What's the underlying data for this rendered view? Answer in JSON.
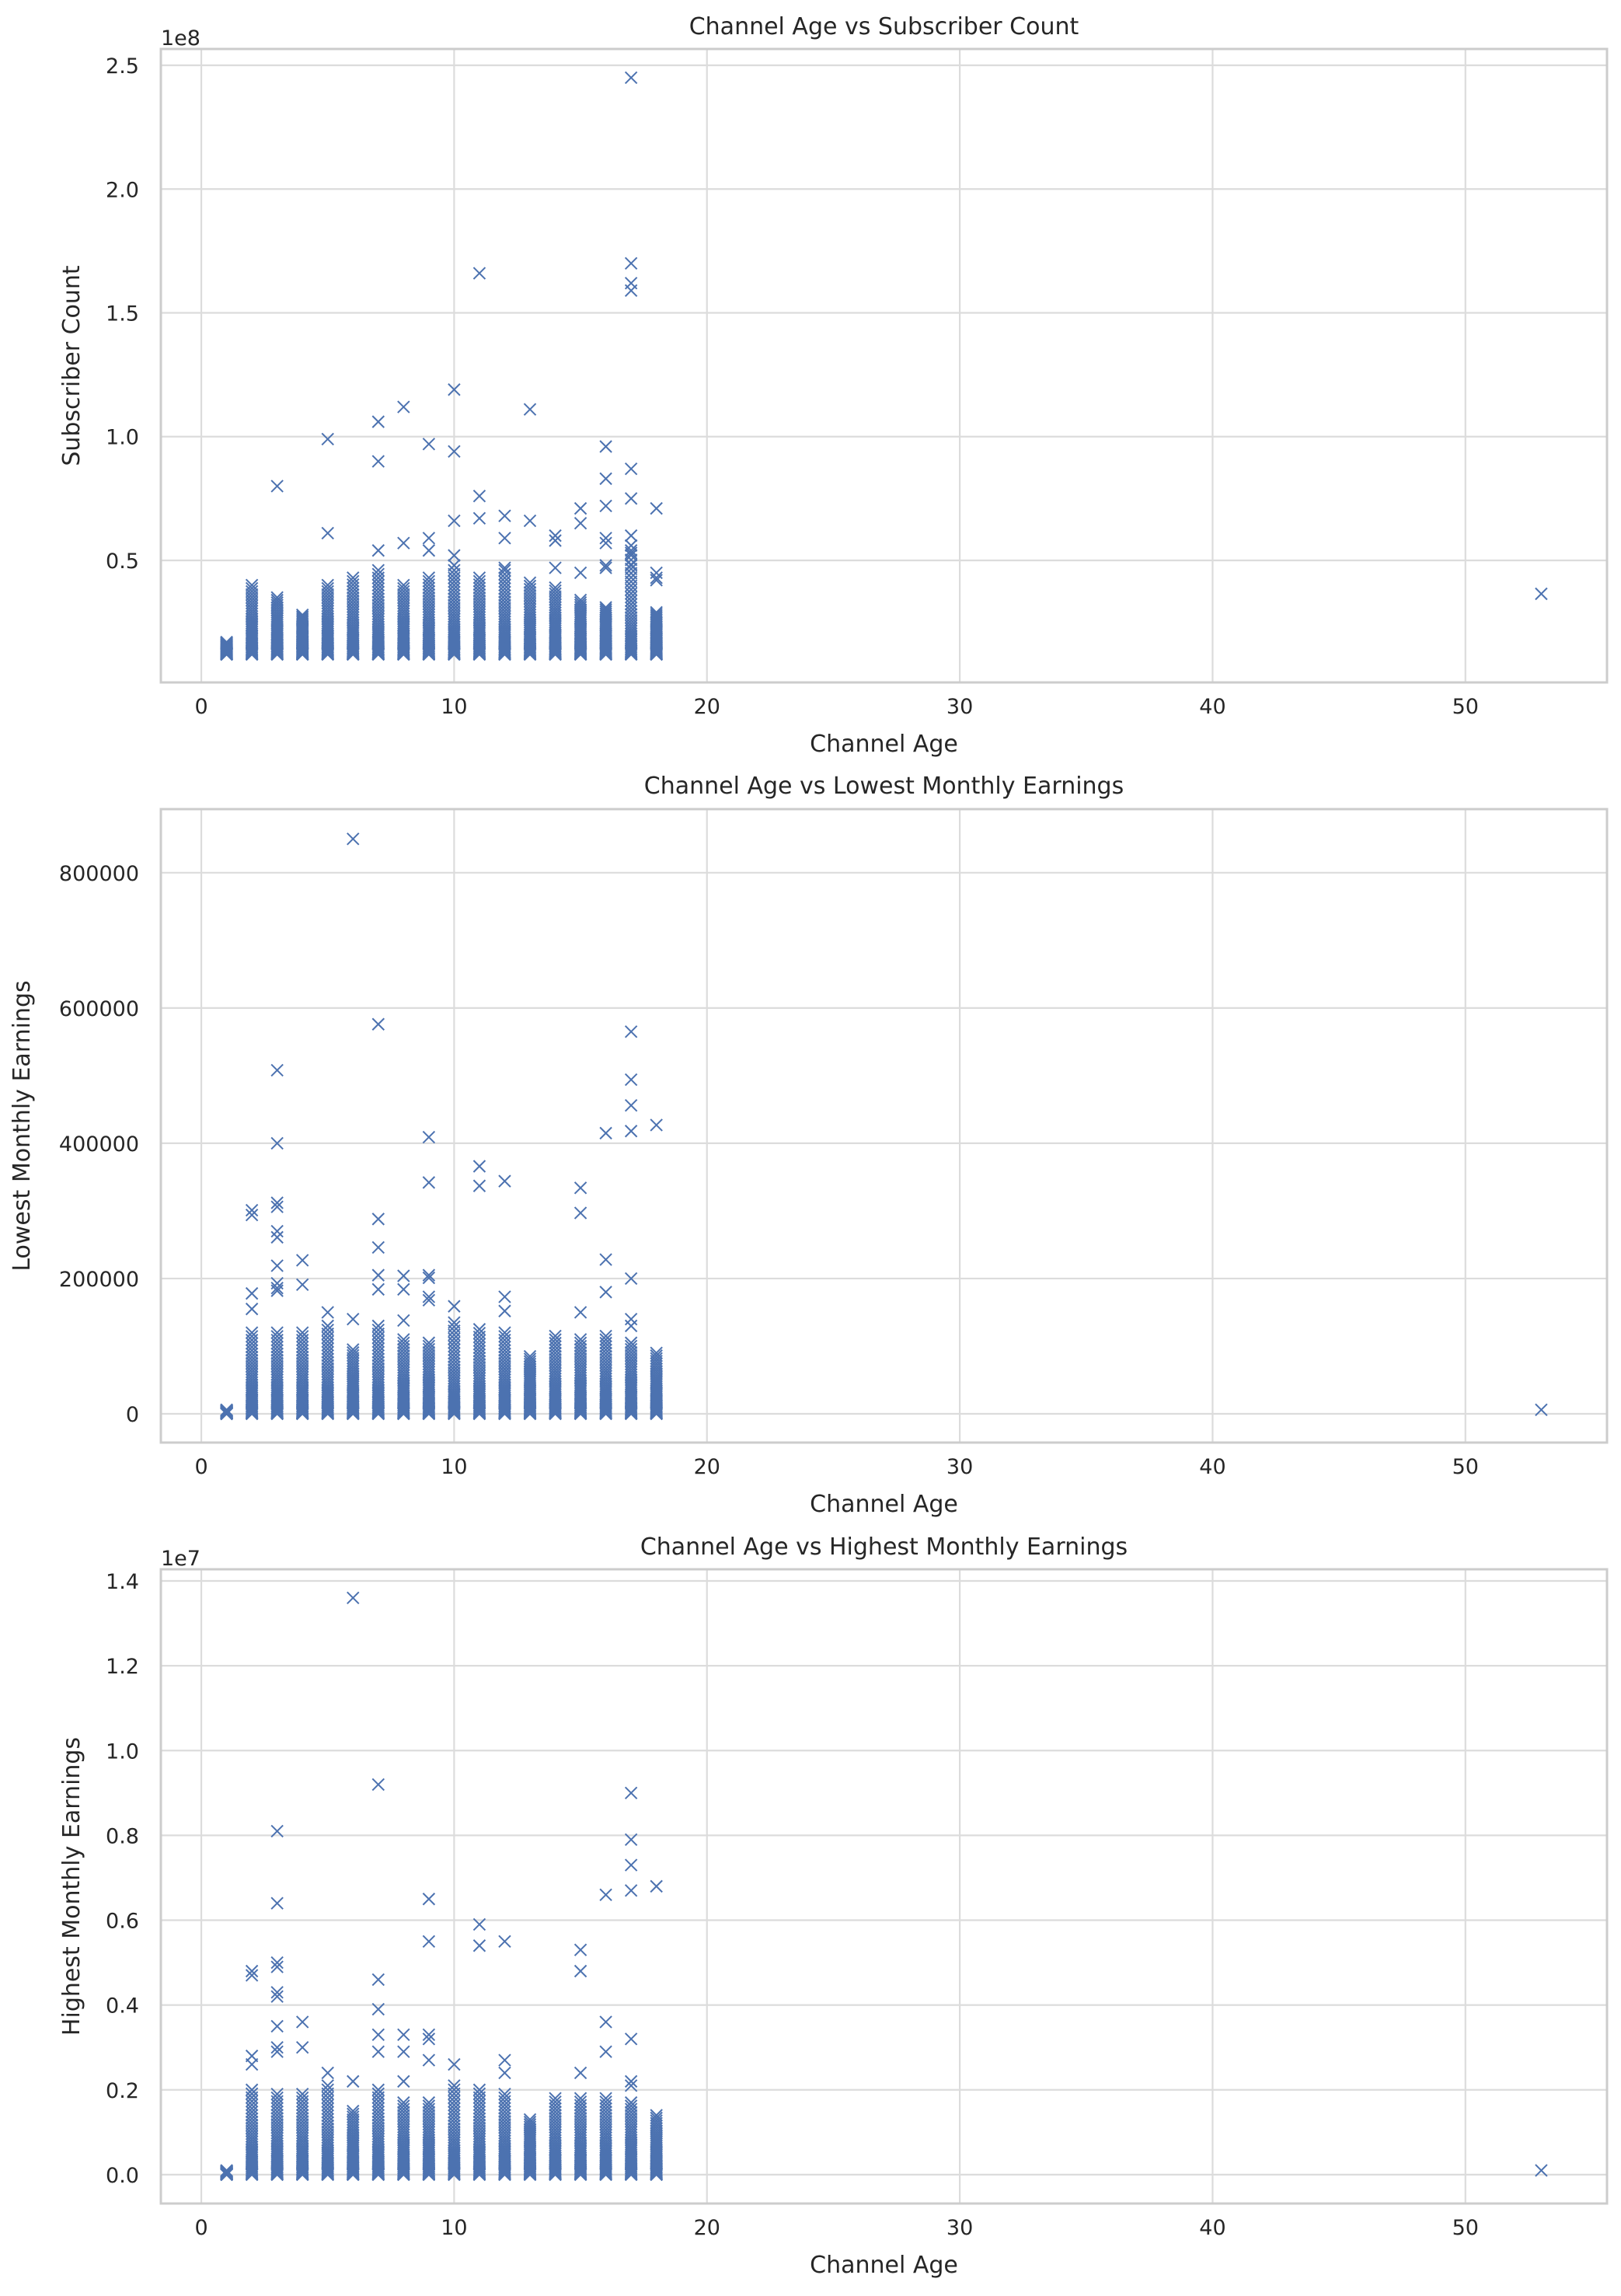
{
  "figure": {
    "background": "#ffffff",
    "marker_color": "#4c72b0",
    "marker": "x",
    "grid_color": "#dcdcdc",
    "spine_color": "#cccccc"
  },
  "chart_data": [
    {
      "type": "scatter",
      "title": "Channel Age vs Subscriber Count",
      "xlabel": "Channel Age",
      "ylabel": "Subscriber Count",
      "y_offset_label": "1e8",
      "y_scale": 100000000,
      "grid": true,
      "xlim": [
        -1.6,
        55.6
      ],
      "ylim": [
        700000,
        256600000
      ],
      "xticks": [
        0,
        10,
        20,
        30,
        40,
        50
      ],
      "xtick_labels": [
        "0",
        "10",
        "20",
        "30",
        "40",
        "50"
      ],
      "yticks": [
        50000000,
        100000000,
        150000000,
        200000000,
        250000000
      ],
      "ytick_labels": [
        "0.5",
        "1.0",
        "1.5",
        "2.0",
        "2.5"
      ],
      "outliers": [
        [
          17,
          245000000
        ],
        [
          17,
          170000000
        ],
        [
          17,
          162000000
        ],
        [
          17,
          159000000
        ],
        [
          11,
          166000000
        ],
        [
          10,
          119000000
        ],
        [
          8,
          112000000
        ],
        [
          13,
          111000000
        ],
        [
          7,
          106000000
        ],
        [
          5,
          99000000
        ],
        [
          9,
          97000000
        ],
        [
          16,
          96000000
        ],
        [
          10,
          94000000
        ],
        [
          7,
          90000000
        ],
        [
          17,
          87000000
        ],
        [
          16,
          83000000
        ],
        [
          3,
          80000000
        ],
        [
          11,
          76000000
        ],
        [
          17,
          75000000
        ],
        [
          16,
          72000000
        ],
        [
          15,
          71000000
        ],
        [
          18,
          71000000
        ],
        [
          12,
          68000000
        ],
        [
          11,
          67000000
        ],
        [
          10,
          66000000
        ],
        [
          13,
          66000000
        ],
        [
          15,
          65000000
        ],
        [
          5,
          61000000
        ],
        [
          14,
          60000000
        ],
        [
          17,
          60000000
        ],
        [
          9,
          59000000
        ],
        [
          12,
          59000000
        ],
        [
          16,
          59000000
        ],
        [
          14,
          58000000
        ],
        [
          16,
          57000000
        ],
        [
          8,
          57000000
        ],
        [
          17,
          56000000
        ],
        [
          7,
          54000000
        ],
        [
          9,
          54000000
        ],
        [
          17,
          53000000
        ],
        [
          10,
          52000000
        ],
        [
          16,
          48000000
        ],
        [
          10,
          48000000
        ],
        [
          14,
          47000000
        ],
        [
          12,
          47000000
        ],
        [
          17,
          48000000
        ],
        [
          16,
          47000000
        ],
        [
          15,
          45000000
        ],
        [
          18,
          45000000
        ],
        [
          18,
          43000000
        ],
        [
          18,
          42000000
        ],
        [
          53,
          36500000
        ]
      ],
      "columns": [
        {
          "age": 1,
          "min": 12000000,
          "max": 17000000
        },
        {
          "age": 2,
          "min": 12000000,
          "max": 40000000
        },
        {
          "age": 3,
          "min": 12000000,
          "max": 35000000
        },
        {
          "age": 4,
          "min": 12000000,
          "max": 28000000
        },
        {
          "age": 5,
          "min": 12000000,
          "max": 40000000
        },
        {
          "age": 6,
          "min": 12000000,
          "max": 43000000
        },
        {
          "age": 7,
          "min": 12000000,
          "max": 46000000
        },
        {
          "age": 8,
          "min": 12000000,
          "max": 40000000
        },
        {
          "age": 9,
          "min": 12000000,
          "max": 43000000
        },
        {
          "age": 10,
          "min": 12000000,
          "max": 46000000
        },
        {
          "age": 11,
          "min": 12000000,
          "max": 43000000
        },
        {
          "age": 12,
          "min": 12000000,
          "max": 46000000
        },
        {
          "age": 13,
          "min": 12000000,
          "max": 41000000
        },
        {
          "age": 14,
          "min": 12000000,
          "max": 39000000
        },
        {
          "age": 15,
          "min": 12000000,
          "max": 34000000
        },
        {
          "age": 16,
          "min": 12000000,
          "max": 31000000
        },
        {
          "age": 17,
          "min": 12000000,
          "max": 54000000
        },
        {
          "age": 18,
          "min": 12000000,
          "max": 29000000
        }
      ]
    },
    {
      "type": "scatter",
      "title": "Channel Age vs Lowest Monthly Earnings",
      "xlabel": "Channel Age",
      "ylabel": "Lowest Monthly Earnings",
      "y_offset_label": "",
      "y_scale": 1,
      "grid": true,
      "xlim": [
        -1.6,
        55.6
      ],
      "ylim": [
        -42500,
        894000
      ],
      "xticks": [
        0,
        10,
        20,
        30,
        40,
        50
      ],
      "xtick_labels": [
        "0",
        "10",
        "20",
        "30",
        "40",
        "50"
      ],
      "yticks": [
        0,
        200000,
        400000,
        600000,
        800000
      ],
      "ytick_labels": [
        "0",
        "200000",
        "400000",
        "600000",
        "800000"
      ],
      "outliers": [
        [
          6,
          850000
        ],
        [
          7,
          576000
        ],
        [
          17,
          565000
        ],
        [
          3,
          508000
        ],
        [
          17,
          494000
        ],
        [
          17,
          456000
        ],
        [
          18,
          427000
        ],
        [
          17,
          418000
        ],
        [
          16,
          415000
        ],
        [
          9,
          409000
        ],
        [
          3,
          400000
        ],
        [
          11,
          366000
        ],
        [
          12,
          344000
        ],
        [
          9,
          342000
        ],
        [
          11,
          337000
        ],
        [
          15,
          334000
        ],
        [
          3,
          312000
        ],
        [
          3,
          306000
        ],
        [
          2,
          301000
        ],
        [
          2,
          294000
        ],
        [
          15,
          297000
        ],
        [
          7,
          288000
        ],
        [
          3,
          270000
        ],
        [
          3,
          261000
        ],
        [
          7,
          246000
        ],
        [
          16,
          228000
        ],
        [
          4,
          227000
        ],
        [
          3,
          219000
        ],
        [
          9,
          205000
        ],
        [
          7,
          205000
        ],
        [
          8,
          204000
        ],
        [
          9,
          201000
        ],
        [
          17,
          200000
        ],
        [
          3,
          193000
        ],
        [
          4,
          191000
        ],
        [
          3,
          186000
        ],
        [
          3,
          182000
        ],
        [
          7,
          184000
        ],
        [
          8,
          184000
        ],
        [
          16,
          180000
        ],
        [
          2,
          178000
        ],
        [
          12,
          173000
        ],
        [
          9,
          173000
        ],
        [
          9,
          168000
        ],
        [
          10,
          159000
        ],
        [
          2,
          155000
        ],
        [
          12,
          152000
        ],
        [
          15,
          150000
        ],
        [
          5,
          150000
        ],
        [
          17,
          140000
        ],
        [
          6,
          140000
        ],
        [
          8,
          138000
        ],
        [
          17,
          130000
        ],
        [
          53,
          6000
        ]
      ],
      "columns": [
        {
          "age": 1,
          "min": 0,
          "max": 6000
        },
        {
          "age": 2,
          "min": 0,
          "max": 120000
        },
        {
          "age": 3,
          "min": 0,
          "max": 120000
        },
        {
          "age": 4,
          "min": 0,
          "max": 120000
        },
        {
          "age": 5,
          "min": 0,
          "max": 130000
        },
        {
          "age": 6,
          "min": 0,
          "max": 95000
        },
        {
          "age": 7,
          "min": 0,
          "max": 130000
        },
        {
          "age": 8,
          "min": 0,
          "max": 110000
        },
        {
          "age": 9,
          "min": 0,
          "max": 105000
        },
        {
          "age": 10,
          "min": 0,
          "max": 135000
        },
        {
          "age": 11,
          "min": 0,
          "max": 125000
        },
        {
          "age": 12,
          "min": 0,
          "max": 120000
        },
        {
          "age": 13,
          "min": 0,
          "max": 85000
        },
        {
          "age": 14,
          "min": 0,
          "max": 115000
        },
        {
          "age": 15,
          "min": 0,
          "max": 110000
        },
        {
          "age": 16,
          "min": 0,
          "max": 115000
        },
        {
          "age": 17,
          "min": 0,
          "max": 105000
        },
        {
          "age": 18,
          "min": 0,
          "max": 90000
        }
      ]
    },
    {
      "type": "scatter",
      "title": "Channel Age vs Highest Monthly Earnings",
      "xlabel": "Channel Age",
      "ylabel": "Highest Monthly Earnings",
      "y_offset_label": "1e7",
      "y_scale": 10000000,
      "grid": true,
      "xlim": [
        -1.6,
        55.6
      ],
      "ylim": [
        -680000,
        14275000
      ],
      "xticks": [
        0,
        10,
        20,
        30,
        40,
        50
      ],
      "xtick_labels": [
        "0",
        "10",
        "20",
        "30",
        "40",
        "50"
      ],
      "yticks": [
        0,
        2000000,
        4000000,
        6000000,
        8000000,
        10000000,
        12000000,
        14000000
      ],
      "ytick_labels": [
        "0.0",
        "0.2",
        "0.4",
        "0.6",
        "0.8",
        "1.0",
        "1.2",
        "1.4"
      ],
      "outliers": [
        [
          6,
          13600000
        ],
        [
          7,
          9200000
        ],
        [
          17,
          9000000
        ],
        [
          3,
          8100000
        ],
        [
          17,
          7900000
        ],
        [
          17,
          7300000
        ],
        [
          18,
          6800000
        ],
        [
          17,
          6700000
        ],
        [
          16,
          6600000
        ],
        [
          9,
          6500000
        ],
        [
          3,
          6400000
        ],
        [
          11,
          5900000
        ],
        [
          12,
          5500000
        ],
        [
          9,
          5500000
        ],
        [
          11,
          5400000
        ],
        [
          15,
          5300000
        ],
        [
          3,
          5000000
        ],
        [
          3,
          4900000
        ],
        [
          15,
          4800000
        ],
        [
          2,
          4800000
        ],
        [
          2,
          4700000
        ],
        [
          7,
          4600000
        ],
        [
          3,
          4300000
        ],
        [
          3,
          4200000
        ],
        [
          7,
          3900000
        ],
        [
          16,
          3600000
        ],
        [
          4,
          3600000
        ],
        [
          3,
          3500000
        ],
        [
          9,
          3300000
        ],
        [
          7,
          3300000
        ],
        [
          8,
          3300000
        ],
        [
          9,
          3200000
        ],
        [
          17,
          3200000
        ],
        [
          3,
          3000000
        ],
        [
          4,
          3000000
        ],
        [
          3,
          2900000
        ],
        [
          7,
          2900000
        ],
        [
          8,
          2900000
        ],
        [
          16,
          2900000
        ],
        [
          2,
          2800000
        ],
        [
          12,
          2700000
        ],
        [
          9,
          2700000
        ],
        [
          2,
          2600000
        ],
        [
          10,
          2600000
        ],
        [
          12,
          2400000
        ],
        [
          15,
          2400000
        ],
        [
          5,
          2400000
        ],
        [
          17,
          2200000
        ],
        [
          6,
          2200000
        ],
        [
          8,
          2200000
        ],
        [
          17,
          2100000
        ],
        [
          53,
          100000
        ]
      ],
      "columns": [
        {
          "age": 1,
          "min": 0,
          "max": 100000
        },
        {
          "age": 2,
          "min": 0,
          "max": 2000000
        },
        {
          "age": 3,
          "min": 0,
          "max": 1900000
        },
        {
          "age": 4,
          "min": 0,
          "max": 1900000
        },
        {
          "age": 5,
          "min": 0,
          "max": 2100000
        },
        {
          "age": 6,
          "min": 0,
          "max": 1500000
        },
        {
          "age": 7,
          "min": 0,
          "max": 2000000
        },
        {
          "age": 8,
          "min": 0,
          "max": 1700000
        },
        {
          "age": 9,
          "min": 0,
          "max": 1700000
        },
        {
          "age": 10,
          "min": 0,
          "max": 2100000
        },
        {
          "age": 11,
          "min": 0,
          "max": 2000000
        },
        {
          "age": 12,
          "min": 0,
          "max": 1900000
        },
        {
          "age": 13,
          "min": 0,
          "max": 1300000
        },
        {
          "age": 14,
          "min": 0,
          "max": 1800000
        },
        {
          "age": 15,
          "min": 0,
          "max": 1800000
        },
        {
          "age": 16,
          "min": 0,
          "max": 1800000
        },
        {
          "age": 17,
          "min": 0,
          "max": 1700000
        },
        {
          "age": 18,
          "min": 0,
          "max": 1400000
        }
      ]
    }
  ]
}
